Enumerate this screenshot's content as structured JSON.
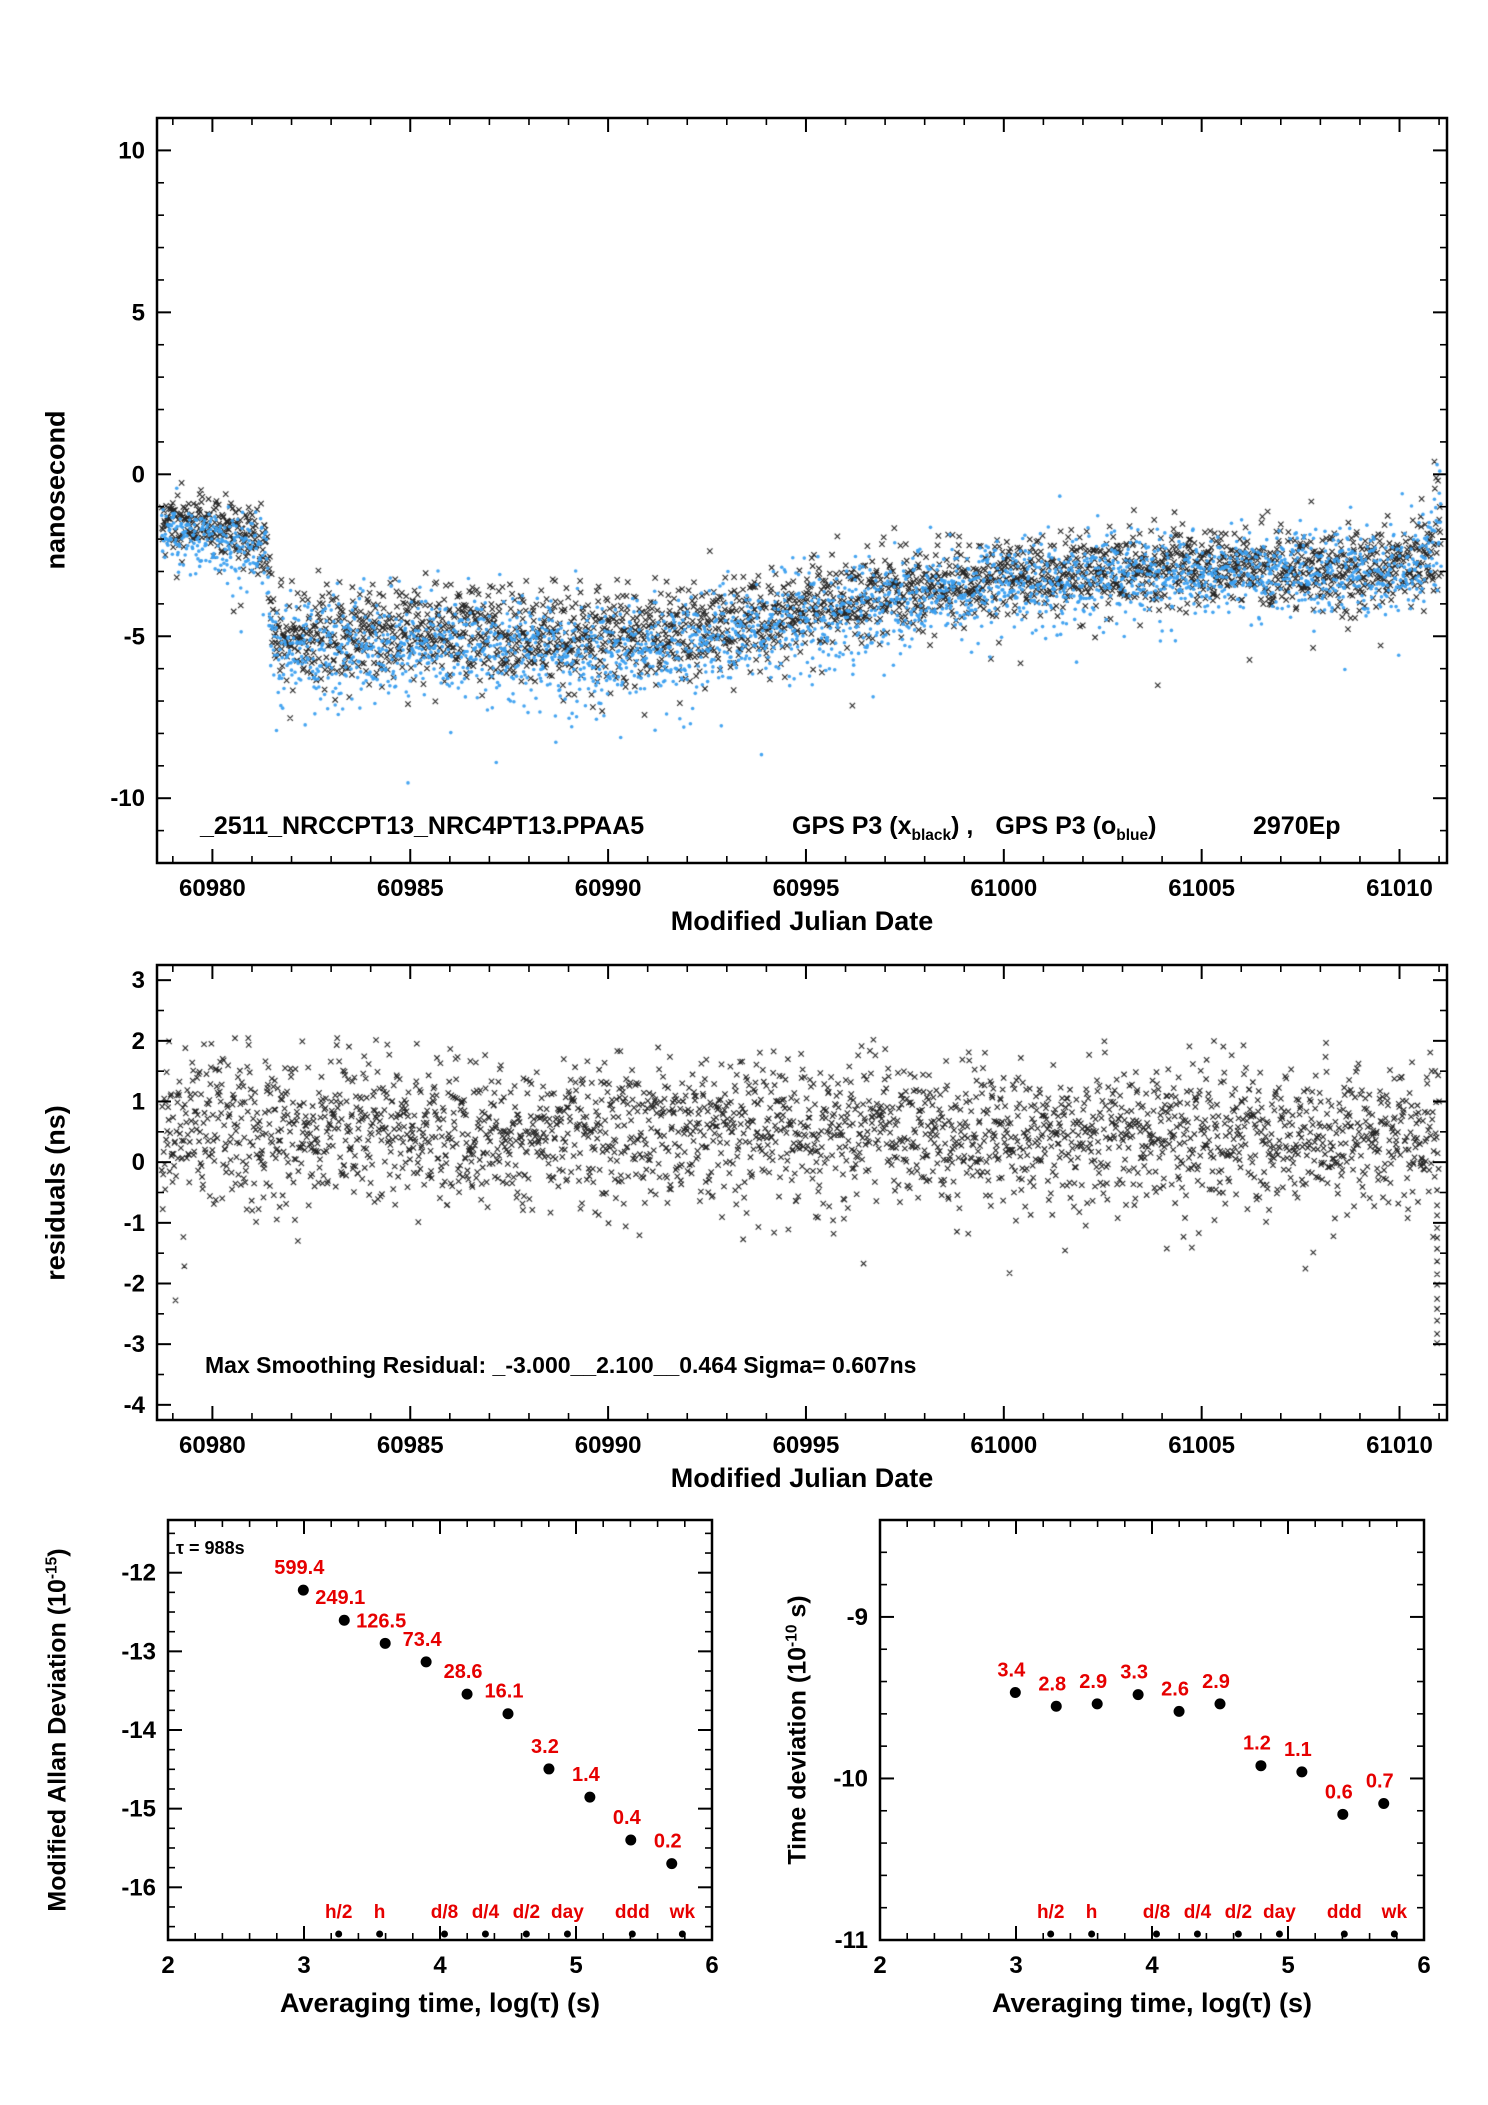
{
  "colors": {
    "background": "#ffffff",
    "axis": "#000000",
    "marker_black": "#000000",
    "marker_blue": "#3ca0f0",
    "label_red": "#e60000"
  },
  "chart_data": [
    {
      "type": "scatter",
      "name": "gps-time-comparison",
      "xlabel": "Modified Julian Date",
      "ylabel": "nanosecond",
      "xlim": [
        60978.6,
        61011.2
      ],
      "ylim": [
        -12,
        11
      ],
      "xticks": [
        60980,
        60985,
        60990,
        60995,
        61000,
        61005,
        61010
      ],
      "yticks": [
        10,
        5,
        0,
        -5,
        -10
      ],
      "x_minor_step": 1,
      "y_minor_step": 1,
      "annotation": {
        "file_id": "_2511_NRCCPT13_NRC4PT13.PPAA5",
        "series1_pre": "GPS P3 (x",
        "series1_sub": "black",
        "series1_post": ") ,",
        "series2_pre": "GPS P3 (o",
        "series2_sub": "blue",
        "series2_post": ")",
        "epochs": "2970Ep"
      },
      "series": [
        {
          "name": "GPS P3 x black",
          "marker": "x",
          "color": "#000000",
          "n": 2900,
          "t_start": 60978.72,
          "t_end": 61011.05,
          "seed": 3,
          "outlier_prob": 0.012,
          "outlier_mag": 2.0,
          "up_outlier_prob": 0.003,
          "mean_knots": [
            [
              60978.7,
              -1.35
            ],
            [
              60980.3,
              -1.65
            ],
            [
              60981.35,
              -2.05
            ],
            [
              60981.5,
              -4.7
            ],
            [
              60982.1,
              -5.15
            ],
            [
              60983.5,
              -4.8
            ],
            [
              60986,
              -4.85
            ],
            [
              60988.5,
              -4.95
            ],
            [
              60991,
              -5.0
            ],
            [
              60993,
              -4.7
            ],
            [
              60995,
              -4.15
            ],
            [
              60996.5,
              -3.8
            ],
            [
              60998,
              -3.45
            ],
            [
              61000,
              -3.15
            ],
            [
              61002,
              -3.0
            ],
            [
              61004.5,
              -2.95
            ],
            [
              61006.5,
              -2.85
            ],
            [
              61008.5,
              -2.95
            ],
            [
              61010.3,
              -2.75
            ],
            [
              61011,
              -2.5
            ]
          ],
          "sigma_knots": [
            [
              60978.7,
              0.42
            ],
            [
              60981.3,
              0.5
            ],
            [
              60982,
              0.75
            ],
            [
              60990,
              0.75
            ],
            [
              60994,
              0.7
            ],
            [
              60998,
              0.62
            ],
            [
              61002,
              0.58
            ],
            [
              61007,
              0.6
            ],
            [
              61011,
              0.65
            ]
          ],
          "end_spike": {
            "t_from": 61010.88,
            "lo": -3.8,
            "hi": 0.5
          }
        },
        {
          "name": "GPS P3 o blue",
          "marker": "o",
          "color": "#3ca0f0",
          "n": 2900,
          "t_start": 60978.72,
          "t_end": 61011.05,
          "seed": 9,
          "outlier_prob": 0.015,
          "outlier_mag": 2.2,
          "up_outlier_prob": 0.002,
          "mean_knots": [
            [
              60978.7,
              -1.75
            ],
            [
              60980.3,
              -2.05
            ],
            [
              60981.35,
              -2.45
            ],
            [
              60981.5,
              -5.1
            ],
            [
              60982.1,
              -5.6
            ],
            [
              60983.5,
              -5.25
            ],
            [
              60986,
              -5.35
            ],
            [
              60988.5,
              -5.4
            ],
            [
              60991,
              -5.45
            ],
            [
              60993,
              -5.1
            ],
            [
              60995,
              -4.55
            ],
            [
              60996.5,
              -4.15
            ],
            [
              60998,
              -3.75
            ],
            [
              61000,
              -3.4
            ],
            [
              61002,
              -3.2
            ],
            [
              61004.5,
              -3.1
            ],
            [
              61006.5,
              -2.95
            ],
            [
              61008.5,
              -3.05
            ],
            [
              61010.3,
              -2.85
            ],
            [
              61011,
              -2.2
            ]
          ],
          "sigma_knots": [
            [
              60978.7,
              0.45
            ],
            [
              60981.3,
              0.55
            ],
            [
              60982,
              0.85
            ],
            [
              60990,
              0.85
            ],
            [
              60994,
              0.78
            ],
            [
              60998,
              0.7
            ],
            [
              61002,
              0.62
            ],
            [
              61007,
              0.62
            ],
            [
              61011,
              0.7
            ]
          ],
          "end_spike": {
            "t_from": 61010.85,
            "lo": -4.0,
            "hi": 0.75
          }
        }
      ]
    },
    {
      "type": "scatter",
      "name": "smoothing-residuals",
      "xlabel": "Modified Julian Date",
      "ylabel": "residuals (ns)",
      "xlim": [
        60978.6,
        61011.2
      ],
      "ylim": [
        -4.25,
        3.25
      ],
      "xticks": [
        60980,
        60985,
        60990,
        60995,
        61000,
        61005,
        61010
      ],
      "yticks": [
        3,
        2,
        1,
        0,
        -1,
        -2,
        -3,
        -4
      ],
      "x_minor_step": 1,
      "y_minor_step": 0.5,
      "annotation": "Max Smoothing Residual: _-3.000__2.100__0.464  Sigma= 0.607ns",
      "series": [
        {
          "name": "residuals",
          "marker": "x",
          "color": "#000000",
          "n": 2600,
          "t_start": 60978.72,
          "t_end": 61011.0,
          "seed": 11,
          "outlier_prob": 0.012,
          "outlier_mag": 1.6,
          "up_outlier_prob": 0.0,
          "mean_knots": [
            [
              60978.7,
              0.55
            ],
            [
              61011,
              0.45
            ]
          ],
          "sigma_knots": [
            [
              60978.7,
              0.6
            ],
            [
              61011,
              0.6
            ]
          ],
          "clip": [
            -3.0,
            2.05
          ],
          "end_column": {
            "t": 61010.95,
            "count": 13,
            "lo": -3.0,
            "hi": -0.7
          }
        }
      ]
    },
    {
      "type": "scatter",
      "name": "modified-allan-deviation",
      "xlabel": "Averaging time, log(τ) (s)",
      "ylabel_pre": "Modified Allan Deviation (10",
      "ylabel_sup": "-15",
      "ylabel_post": ")",
      "xlim": [
        2,
        6
      ],
      "ylim": [
        -16.67,
        -11.33
      ],
      "xticks": [
        2,
        3,
        4,
        5,
        6
      ],
      "yticks": [
        -12,
        -13,
        -14,
        -15,
        -16
      ],
      "x_minor_step": 0.2,
      "y_minor_step": 0.25,
      "tau_annotation": "τ = 988s",
      "points": {
        "log_tau": [
          2.995,
          3.296,
          3.597,
          3.898,
          4.199,
          4.5,
          4.801,
          5.102,
          5.403,
          5.704
        ],
        "labels": [
          "599.4",
          "249.1",
          "126.5",
          "73.4",
          "28.6",
          "16.1",
          "3.2",
          "1.4",
          "0.4",
          "0.2"
        ],
        "log_value": [
          -12.222,
          -12.604,
          -12.898,
          -13.134,
          -13.544,
          -13.793,
          -14.495,
          -14.854,
          -15.398,
          -15.699
        ]
      },
      "time_marks": {
        "labels": [
          "h/2",
          "h",
          "d/8",
          "d/4",
          "d/2",
          "day",
          "ddd",
          "wk"
        ],
        "log_tau": [
          3.255,
          3.556,
          4.033,
          4.334,
          4.635,
          4.937,
          5.414,
          5.782
        ]
      }
    },
    {
      "type": "scatter",
      "name": "time-deviation",
      "xlabel": "Averaging time, log(τ) (s)",
      "ylabel_pre": "Time deviation (10",
      "ylabel_sup": "-10",
      "ylabel_post": " s)",
      "xlim": [
        2,
        6
      ],
      "ylim": [
        -11,
        -8.4
      ],
      "xticks": [
        2,
        3,
        4,
        5,
        6
      ],
      "yticks": [
        -9,
        -10,
        -11
      ],
      "x_minor_step": 0.2,
      "y_minor_step": 0.2,
      "points": {
        "log_tau": [
          2.995,
          3.296,
          3.597,
          3.898,
          4.199,
          4.5,
          4.801,
          5.102,
          5.403,
          5.704
        ],
        "labels": [
          "3.4",
          "2.8",
          "2.9",
          "3.3",
          "2.6",
          "2.9",
          "1.2",
          "1.1",
          "0.6",
          "0.7"
        ],
        "log_value": [
          -9.468,
          -9.553,
          -9.538,
          -9.481,
          -9.585,
          -9.538,
          -9.921,
          -9.959,
          -10.222,
          -10.155
        ]
      },
      "time_marks": {
        "labels": [
          "h/2",
          "h",
          "d/8",
          "d/4",
          "d/2",
          "day",
          "ddd",
          "wk"
        ],
        "log_tau": [
          3.255,
          3.556,
          4.033,
          4.334,
          4.635,
          4.937,
          5.414,
          5.782
        ]
      }
    }
  ]
}
